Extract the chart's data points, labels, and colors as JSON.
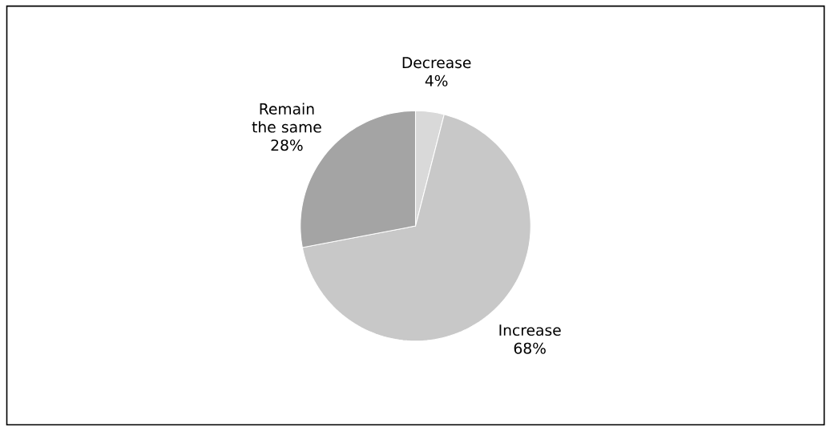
{
  "chart_data": {
    "type": "pie",
    "categories": [
      "Decrease",
      "Increase",
      "Remain the same"
    ],
    "values": [
      4,
      68,
      28
    ],
    "value_labels": [
      "4%",
      "68%",
      "28%"
    ],
    "colors": [
      "#d9d9d9",
      "#c8c8c8",
      "#a4a4a4"
    ]
  }
}
